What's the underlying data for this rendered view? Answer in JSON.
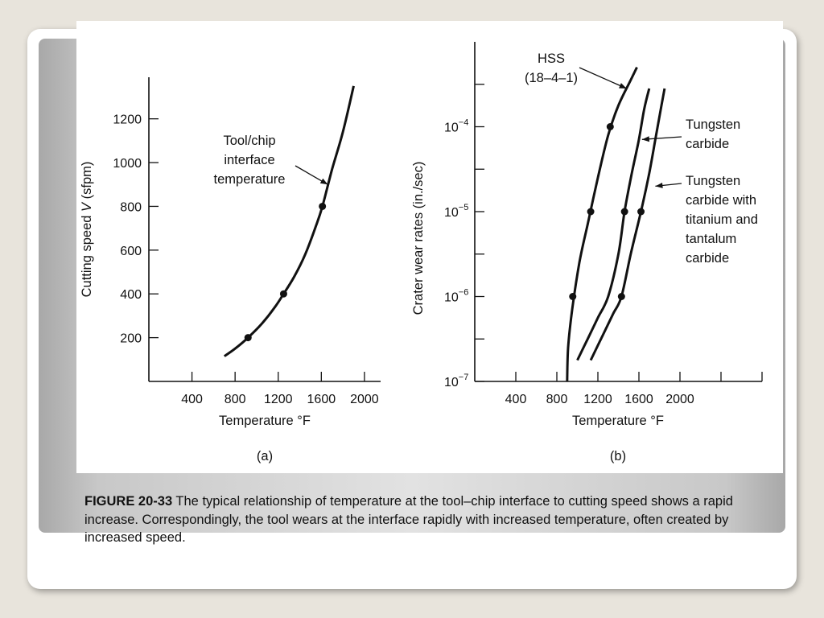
{
  "caption": {
    "label": "FIGURE 20-33",
    "text": "The typical relationship of temperature at the tool–chip interface to cutting speed shows a rapid increase. Correspondingly, the tool wears at the interface rapidly with increased temperature, often created by increased speed."
  },
  "chart_data": [
    {
      "type": "line",
      "panel_label": "(a)",
      "xlabel": "Temperature °F",
      "ylabel": "Cutting speed V (sfpm)",
      "xlim": [
        0,
        2150
      ],
      "ylim": [
        0,
        1390
      ],
      "x_ticks": [
        400,
        800,
        1200,
        1600,
        2000
      ],
      "x_tick_labels": [
        "400",
        "800",
        "1200",
        "1600",
        "2000"
      ],
      "y_ticks": [
        200,
        400,
        600,
        800,
        1000,
        1200
      ],
      "y_tick_labels": [
        "200",
        "400",
        "600",
        "800",
        "1000",
        "1200"
      ],
      "grid": false,
      "series": [
        {
          "name": "",
          "color": "#111111",
          "x": [
            700,
            800,
            920,
            1050,
            1170,
            1250,
            1350,
            1450,
            1550,
            1610,
            1700,
            1800,
            1900
          ],
          "y": [
            115,
            150,
            200,
            265,
            340,
            400,
            480,
            580,
            710,
            800,
            970,
            1140,
            1350
          ],
          "markers": [
            [
              920,
              200
            ],
            [
              1250,
              400
            ],
            [
              1610,
              800
            ]
          ]
        }
      ],
      "annotations": [
        {
          "text_lines": [
            "Tool/chip",
            "interface",
            "temperature"
          ],
          "points_to": [
            1660,
            900
          ]
        }
      ]
    },
    {
      "type": "line",
      "panel_label": "(b)",
      "xlabel": "Temperature °F",
      "ylabel": "Crater wear rates (in./sec)",
      "y_scale": "log",
      "xlim": [
        0,
        2800
      ],
      "ylim": [
        1e-07,
        0.001
      ],
      "x_ticks": [
        400,
        800,
        1200,
        1600,
        2000,
        2400,
        2800
      ],
      "x_tick_labels": [
        "400",
        "800",
        "1200",
        "1600",
        "2000",
        "",
        ""
      ],
      "y_ticks": [
        1e-07,
        1e-06,
        1e-05,
        0.0001
      ],
      "y_tick_labels": [
        "10^-7",
        "10^-6",
        "10^-5",
        "10^-4"
      ],
      "grid": false,
      "series": [
        {
          "name": "HSS (18–4–1)",
          "color": "#111111",
          "x": [
            900,
            910,
            950,
            1020,
            1100,
            1200,
            1300,
            1400,
            1520,
            1580
          ],
          "logy": [
            -7.0,
            -6.6,
            -6.15,
            -5.6,
            -5.15,
            -4.6,
            -4.1,
            -3.75,
            -3.45,
            -3.3
          ],
          "markers": [
            [
              955,
              -6.0
            ],
            [
              1130,
              -5.0
            ],
            [
              1320,
              -4.0
            ]
          ]
        },
        {
          "name": "Tungsten carbide",
          "color": "#111111",
          "x": [
            1000,
            1100,
            1200,
            1300,
            1400,
            1460,
            1530,
            1600,
            1650,
            1700
          ],
          "logy": [
            -6.75,
            -6.5,
            -6.25,
            -6.0,
            -5.5,
            -5.0,
            -4.55,
            -4.15,
            -3.8,
            -3.55
          ],
          "markers": [
            [
              1460,
              -5.0
            ]
          ]
        },
        {
          "name": "Tungsten carbide with titanium and tantalum carbide",
          "color": "#111111",
          "x": [
            1130,
            1250,
            1350,
            1430,
            1520,
            1620,
            1700,
            1760,
            1820,
            1850
          ],
          "logy": [
            -6.75,
            -6.45,
            -6.2,
            -6.0,
            -5.5,
            -5.0,
            -4.55,
            -4.15,
            -3.75,
            -3.55
          ],
          "markers": [
            [
              1430,
              -6.0
            ],
            [
              1620,
              -5.0
            ]
          ]
        }
      ],
      "annotations": [
        {
          "text_lines": [
            "HSS",
            "(18–4–1)"
          ],
          "points_to": [
            1480,
            -3.55
          ]
        },
        {
          "text_lines": [
            "Tungsten",
            "carbide"
          ],
          "points_to": [
            1630,
            -4.15
          ]
        },
        {
          "text_lines": [
            "Tungsten",
            "carbide with",
            "titanium and",
            "tantalum",
            "carbide"
          ],
          "points_to": [
            1760,
            -4.7
          ]
        }
      ]
    }
  ]
}
